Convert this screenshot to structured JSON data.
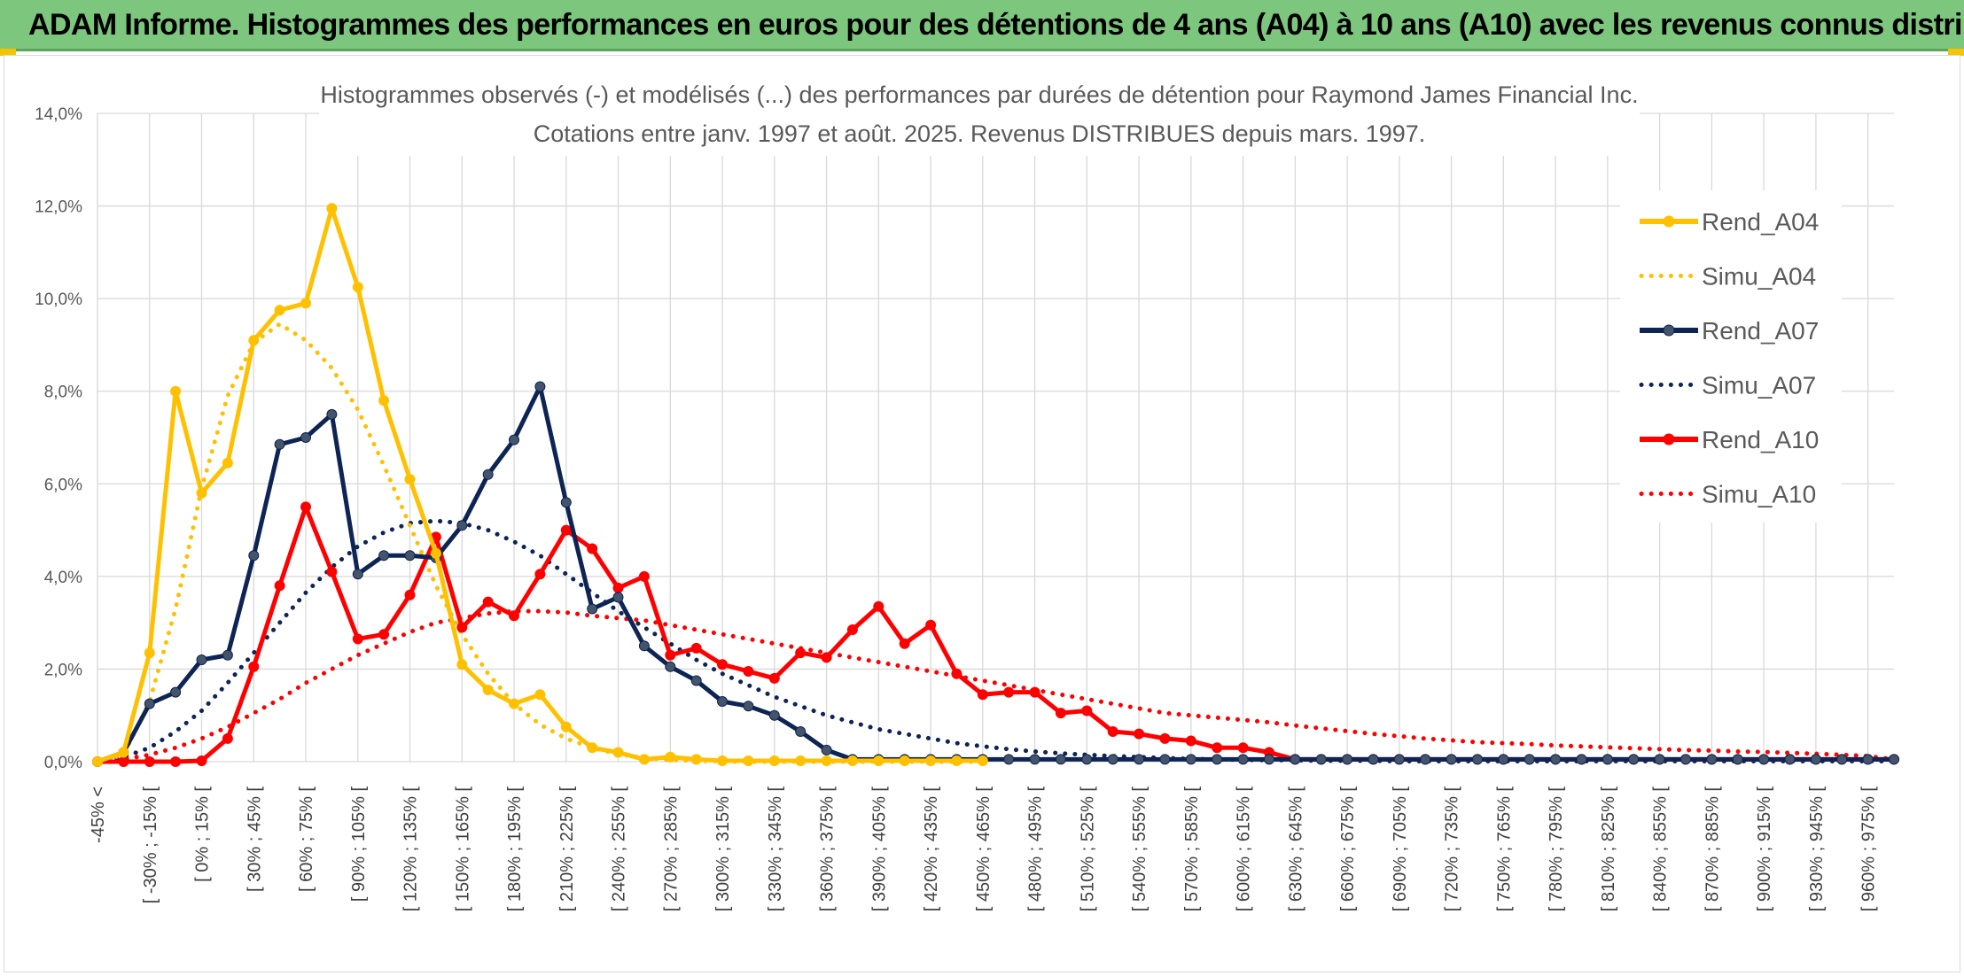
{
  "banner": {
    "title": "ADAM Informe. Histogrammes des performances en euros pour des détentions de 4 ans (A04) à 10 ans (A10) avec les revenus connus distribués"
  },
  "colors": {
    "banner_bg": "#7dc67d",
    "a04": "#ffc000",
    "a07": "#0d2455",
    "a10": "#ff0000",
    "marker_a07": "#44546a"
  },
  "chart_data": {
    "type": "line",
    "title_line1": "Histogrammes observés (-) et modélisés (...) des performances par durées de détention pour Raymond James Financial Inc.",
    "title_line2": "Cotations entre janv. 1997 et août. 2025. Revenus DISTRIBUES depuis mars. 1997.",
    "ylim": [
      0,
      14
    ],
    "y_ticks": [
      "0,0%",
      "2,0%",
      "4,0%",
      "6,0%",
      "8,0%",
      "10,0%",
      "12,0%",
      "14,0%"
    ],
    "grid": true,
    "legend_position": "right",
    "x_tick_labels": [
      "-45% <",
      "[ -30% ; -15% [",
      "[ 0% ; 15% [",
      "[ 30% ; 45% [",
      "[ 60% ; 75% [",
      "[ 90% ; 105% [",
      "[ 120% ; 135% [",
      "[ 150% ; 165% [",
      "[ 180% ; 195% [",
      "[ 210% ; 225% [",
      "[ 240% ; 255% [",
      "[ 270% ; 285% [",
      "[ 300% ; 315% [",
      "[ 330% ; 345% [",
      "[ 360% ; 375% [",
      "[ 390% ; 405% [",
      "[ 420% ; 435% [",
      "[ 450% ; 465% [",
      "[ 480% ; 495% [",
      "[ 510% ; 525% [",
      "[ 540% ; 555% [",
      "[ 570% ; 585% [",
      "[ 600% ; 615% [",
      "[ 630% ; 645% [",
      "[ 660% ; 675% [",
      "[ 690% ; 705% [",
      "[ 720% ; 735% [",
      "[ 750% ; 765% [",
      "[ 780% ; 795% [",
      "[ 810% ; 825% [",
      "[ 840% ; 855% [",
      "[ 870% ; 885% [",
      "[ 900% ; 915% [",
      "[ 930% ; 945% [",
      "[ 960% ; 975% ["
    ],
    "series": [
      {
        "name": "Rend_A04",
        "style": "solid",
        "color": "#ffc000",
        "values": [
          0,
          0.2,
          2.35,
          8.0,
          5.8,
          6.45,
          9.1,
          9.75,
          9.9,
          11.95,
          10.25,
          7.8,
          6.1,
          4.5,
          2.1,
          1.55,
          1.25,
          1.45,
          0.75,
          0.3,
          0.2,
          0.05,
          0.1,
          0.05,
          0.02,
          0.02,
          0.02,
          0.02,
          0.02,
          0.02,
          0.02,
          0.02,
          0.02,
          0.02,
          0.02
        ]
      },
      {
        "name": "Simu_A04",
        "style": "dotted",
        "color": "#ffc000",
        "values": [
          0,
          0.15,
          1.3,
          3.3,
          5.9,
          7.9,
          9.05,
          9.45,
          9.1,
          8.5,
          7.6,
          6.4,
          5.1,
          3.8,
          2.75,
          1.9,
          1.25,
          0.8,
          0.5,
          0.3,
          0.16,
          0.08,
          0.04,
          0.02,
          0.01,
          0,
          0,
          0,
          0,
          0,
          0,
          0,
          0,
          0,
          0
        ]
      },
      {
        "name": "Rend_A07",
        "style": "solid",
        "color": "#0d2455",
        "values": [
          0,
          0.2,
          1.25,
          1.5,
          2.2,
          2.3,
          4.45,
          6.85,
          7.0,
          7.5,
          4.05,
          4.45,
          4.45,
          4.4,
          5.1,
          6.2,
          6.95,
          8.1,
          5.6,
          3.3,
          3.55,
          2.5,
          2.05,
          1.75,
          1.3,
          1.2,
          1.0,
          0.65,
          0.25,
          0.05,
          0.05,
          0.05,
          0.05,
          0.05,
          0.05,
          0.05,
          0.05,
          0.05,
          0.05,
          0.05,
          0.05,
          0.05,
          0.05,
          0.05,
          0.05,
          0.05,
          0.05,
          0.05,
          0.05,
          0.05,
          0.05,
          0.05,
          0.05,
          0.05,
          0.05,
          0.05,
          0.05,
          0.05,
          0.05,
          0.05,
          0.05,
          0.05,
          0.05,
          0.05,
          0.05,
          0.05,
          0.05,
          0.05,
          0.05,
          0.05
        ]
      },
      {
        "name": "Simu_A07",
        "style": "dotted",
        "color": "#0d2455",
        "values": [
          0,
          0.1,
          0.3,
          0.65,
          1.1,
          1.7,
          2.35,
          3.0,
          3.65,
          4.2,
          4.65,
          4.95,
          5.15,
          5.2,
          5.15,
          5.0,
          4.75,
          4.45,
          4.05,
          3.65,
          3.25,
          2.9,
          2.55,
          2.2,
          1.9,
          1.65,
          1.4,
          1.2,
          1.0,
          0.85,
          0.7,
          0.6,
          0.5,
          0.4,
          0.33,
          0.27,
          0.22,
          0.18,
          0.15,
          0.12,
          0.1,
          0.08,
          0.06,
          0.05,
          0.04,
          0.03,
          0.03,
          0.02,
          0.02,
          0.02,
          0.01,
          0.01,
          0.01,
          0.01,
          0.01,
          0.01,
          0.01,
          0.01,
          0.01,
          0.01,
          0.01,
          0.01,
          0.01,
          0.01,
          0.01,
          0.01,
          0.01,
          0.01,
          0.01,
          0.01
        ]
      },
      {
        "name": "Rend_A10",
        "style": "solid",
        "color": "#ff0000",
        "values": [
          0,
          0,
          0,
          0,
          0.02,
          0.5,
          2.05,
          3.8,
          5.5,
          4.1,
          2.65,
          2.75,
          3.6,
          4.85,
          2.9,
          3.45,
          3.15,
          4.05,
          5.0,
          4.6,
          3.75,
          4.0,
          2.3,
          2.45,
          2.1,
          1.95,
          1.8,
          2.35,
          2.25,
          2.85,
          3.35,
          2.55,
          2.95,
          1.9,
          1.45,
          1.5,
          1.5,
          1.05,
          1.1,
          0.65,
          0.6,
          0.5,
          0.45,
          0.3,
          0.3,
          0.2,
          0.05,
          0.05,
          0.05,
          0.05,
          0.05,
          0.05,
          0.05,
          0.05,
          0.05,
          0.05,
          0.05,
          0.05,
          0.05,
          0.05,
          0.05,
          0.05,
          0.05,
          0.05,
          0.05,
          0.05,
          0.05,
          0.05,
          0.05,
          0.05
        ]
      },
      {
        "name": "Simu_A10",
        "style": "dotted",
        "color": "#ff0000",
        "values": [
          0,
          0.05,
          0.15,
          0.3,
          0.5,
          0.75,
          1.05,
          1.35,
          1.7,
          2.0,
          2.3,
          2.55,
          2.8,
          3.0,
          3.1,
          3.2,
          3.25,
          3.25,
          3.22,
          3.15,
          3.1,
          3.05,
          2.95,
          2.85,
          2.75,
          2.65,
          2.55,
          2.45,
          2.35,
          2.25,
          2.15,
          2.05,
          1.95,
          1.85,
          1.75,
          1.65,
          1.55,
          1.45,
          1.35,
          1.25,
          1.15,
          1.05,
          1.0,
          0.95,
          0.9,
          0.85,
          0.78,
          0.72,
          0.66,
          0.6,
          0.55,
          0.5,
          0.46,
          0.42,
          0.4,
          0.38,
          0.35,
          0.33,
          0.31,
          0.29,
          0.27,
          0.25,
          0.24,
          0.22,
          0.21,
          0.19,
          0.17,
          0.15,
          0.12,
          0.05
        ]
      }
    ]
  }
}
